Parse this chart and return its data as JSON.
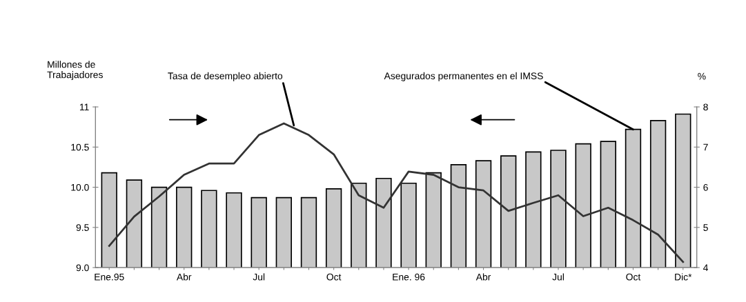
{
  "chart_data": {
    "type": "bar",
    "categories": [
      "Ene.95",
      null,
      null,
      "Abr",
      null,
      null,
      "Jul",
      null,
      null,
      "Oct",
      null,
      null,
      "Ene. 96",
      null,
      null,
      "Abr",
      null,
      null,
      "Jul",
      null,
      null,
      "Oct",
      null,
      "Dic*"
    ],
    "ylabel": "Millones de\nTrabajadores",
    "y2label": "%",
    "ylim": [
      9,
      11
    ],
    "yticks": [
      {
        "value": 9,
        "label": "9.0"
      },
      9.5,
      {
        "value": 10,
        "label": "10.0"
      },
      10.5,
      11
    ],
    "y2lim": [
      4,
      8
    ],
    "y2ticks": [
      4,
      5,
      6,
      7,
      8
    ],
    "legend": false,
    "grid": false,
    "series": [
      {
        "name": "Asegurados permanentes en el IMSS",
        "color": "#c8c8c8",
        "values": [
          10.18,
          10.09,
          10.0,
          10.0,
          9.96,
          9.93,
          9.87,
          9.87,
          9.87,
          9.98,
          10.05,
          10.11,
          10.05,
          10.18,
          10.28,
          10.33,
          10.39,
          10.44,
          10.46,
          10.54,
          10.57,
          10.72,
          10.83,
          10.91
        ]
      },
      {
        "name": "Tasa de desempleo abierto",
        "type": "line",
        "axis": "y2",
        "color": "#333333",
        "marker": "none",
        "line_style": "solid",
        "values": [
          4.54,
          5.27,
          5.77,
          6.31,
          6.59,
          6.59,
          7.3,
          7.59,
          7.3,
          6.82,
          5.8,
          5.49,
          6.39,
          6.31,
          6.0,
          5.92,
          5.41,
          5.61,
          5.8,
          5.28,
          5.49,
          5.18,
          4.82,
          4.14
        ]
      }
    ]
  }
}
